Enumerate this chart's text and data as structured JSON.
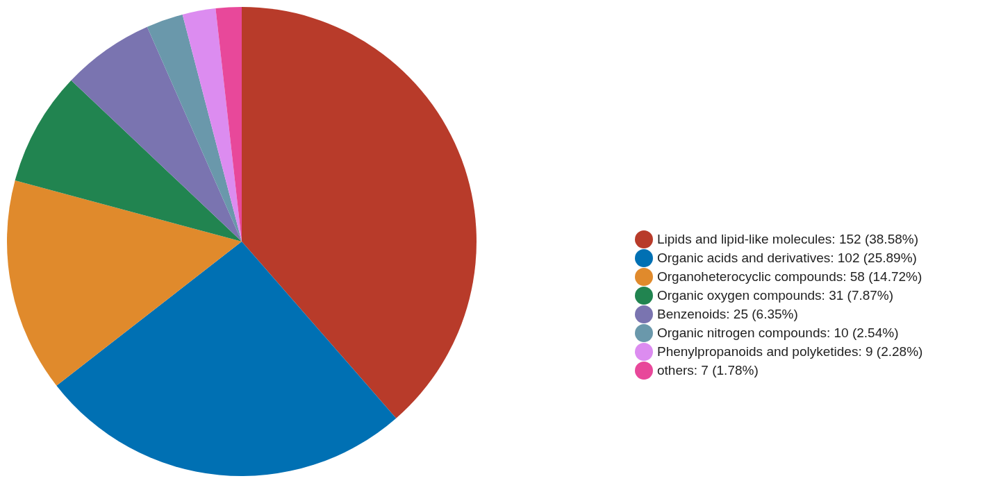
{
  "chart_data": {
    "type": "pie",
    "categories": [
      "Lipids and lipid-like molecules",
      "Organic acids and derivatives",
      "Organoheterocyclic compounds",
      "Organic oxygen compounds",
      "Benzenoids",
      "Organic nitrogen compounds",
      "Phenylpropanoids and polyketides",
      "others"
    ],
    "values": [
      152,
      102,
      58,
      31,
      25,
      10,
      9,
      7
    ],
    "value_labels": [
      "152 (38.58%)",
      "102 (25.89%)",
      "58 (14.72%)",
      "31 (7.87%)",
      "25 (6.35%)",
      "10 (2.54%)",
      "9 (2.28%)",
      "7 (1.78%)"
    ],
    "colors": [
      "#b83b2a",
      "#0070b3",
      "#e08a2c",
      "#218450",
      "#7a74b0",
      "#6a98ab",
      "#dc8cf0",
      "#e8489a"
    ],
    "legend": "right"
  }
}
